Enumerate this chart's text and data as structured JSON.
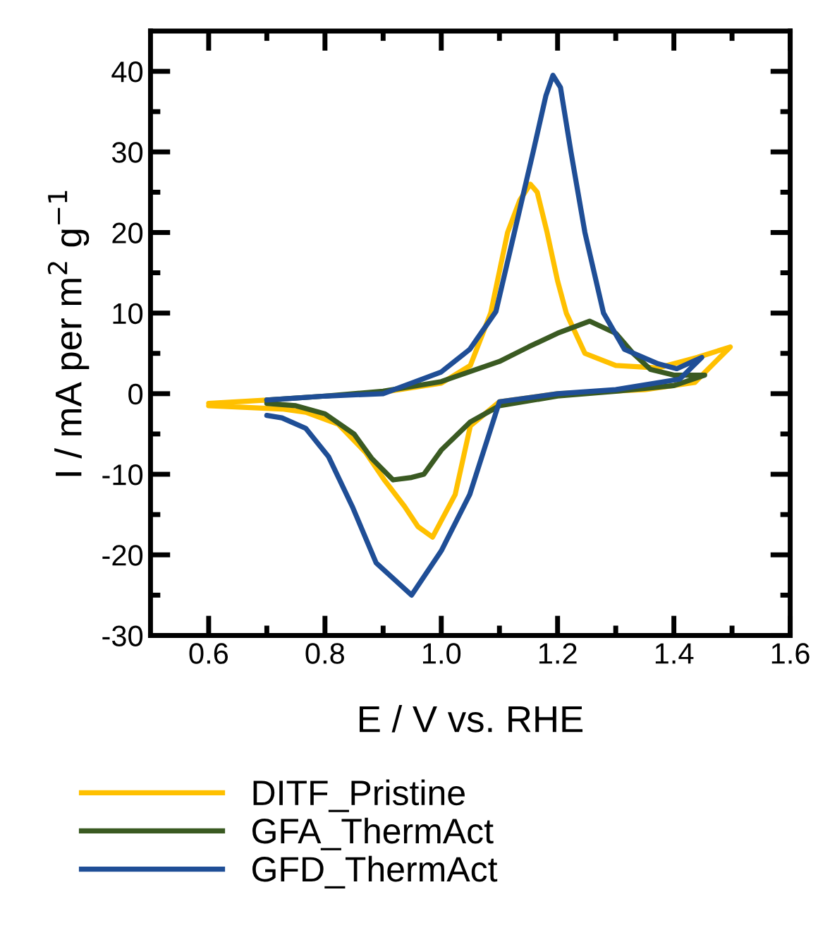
{
  "chart_data": {
    "type": "line",
    "xlabel": "E / V vs. RHE",
    "ylabel": "I / mA per m$^{2}$ g$^{−1}$",
    "xlim": [
      0.5,
      1.6
    ],
    "ylim": [
      -30,
      45
    ],
    "xticks": [
      0.6,
      {
        "value": 0.7,
        "label": null
      },
      0.8,
      {
        "value": 0.9,
        "label": null
      },
      "1.0",
      {
        "value": 1.1,
        "label": null
      },
      1.2,
      {
        "value": 1.3,
        "label": null
      },
      1.4,
      {
        "value": 1.5,
        "label": null
      },
      1.6
    ],
    "yticks": [
      -30,
      {
        "value": -25,
        "label": null
      },
      -20,
      {
        "value": -15,
        "label": null
      },
      -10,
      {
        "value": -5,
        "label": null
      },
      0,
      {
        "value": 5,
        "label": null
      },
      10,
      {
        "value": 15,
        "label": null
      },
      20,
      {
        "value": 25,
        "label": null
      },
      30,
      {
        "value": 35,
        "label": null
      },
      40
    ],
    "legend": "bottom",
    "grid": false,
    "marker": "none",
    "line_style": "solid",
    "series": [
      {
        "name": "DITF_Pristine",
        "color": "#ffc000",
        "x": [
          0.6,
          0.7,
          0.8,
          0.9,
          1.0,
          1.05,
          1.085,
          1.114,
          1.135,
          1.153,
          1.165,
          1.182,
          1.2,
          1.215,
          1.247,
          1.3,
          1.373,
          1.44,
          1.497,
          1.436,
          1.35,
          1.2,
          1.1,
          1.05,
          1.024,
          0.985,
          0.96,
          0.937,
          0.903,
          0.87,
          0.823,
          0.767,
          0.726,
          0.6
        ],
        "values": [
          -1.2,
          -0.8,
          null,
          0.2,
          1.3,
          3.5,
          10,
          20,
          24,
          26,
          25,
          20,
          14,
          10,
          5,
          3.5,
          3.2,
          4.5,
          5.8,
          1.4,
          0.5,
          0,
          -1,
          -4,
          -12.5,
          -17.8,
          -16.5,
          -14,
          -10.8,
          -7.3,
          -3.8,
          -2.3,
          -1.9,
          -1.5
        ]
      },
      {
        "name": "GFA_ThermAct",
        "color": "#3a5a22",
        "x": [
          0.7,
          0.8,
          0.9,
          1.0,
          1.1,
          1.15,
          1.2,
          1.255,
          1.3,
          1.33,
          1.36,
          1.4,
          1.453,
          1.4,
          1.3,
          1.2,
          1.1,
          1.05,
          1.0,
          0.97,
          0.949,
          0.917,
          0.88,
          0.85,
          0.8,
          0.75,
          0.7
        ],
        "values": [
          -0.8,
          -0.3,
          0.3,
          1.5,
          4,
          5.8,
          7.5,
          9,
          7.5,
          5,
          3,
          2.3,
          2.3,
          1,
          0.3,
          -0.3,
          -1.5,
          -3.5,
          -7,
          -10,
          -10.4,
          -10.7,
          -8,
          -5,
          -2.5,
          -1.5,
          -1.2
        ]
      },
      {
        "name": "GFD_ThermAct",
        "color": "#1f4e96",
        "x": [
          0.7,
          0.8,
          0.9,
          1.0,
          1.049,
          1.094,
          1.126,
          1.158,
          1.18,
          1.192,
          1.205,
          1.223,
          1.247,
          1.279,
          1.315,
          1.373,
          1.405,
          1.448,
          1.41,
          1.3,
          1.2,
          1.1,
          1.049,
          1.0,
          0.949,
          0.888,
          0.847,
          0.806,
          0.767,
          0.726,
          0.7
        ],
        "values": [
          -0.8,
          -0.3,
          0,
          2.7,
          5.5,
          10.2,
          20.1,
          30,
          37,
          39.5,
          38,
          30,
          20,
          10,
          5.5,
          3.7,
          3.1,
          4.5,
          1.8,
          0.5,
          0,
          -1,
          -12.5,
          -19.5,
          -25,
          -21,
          -14,
          -7.8,
          -4.3,
          -3,
          -2.7
        ]
      }
    ]
  }
}
